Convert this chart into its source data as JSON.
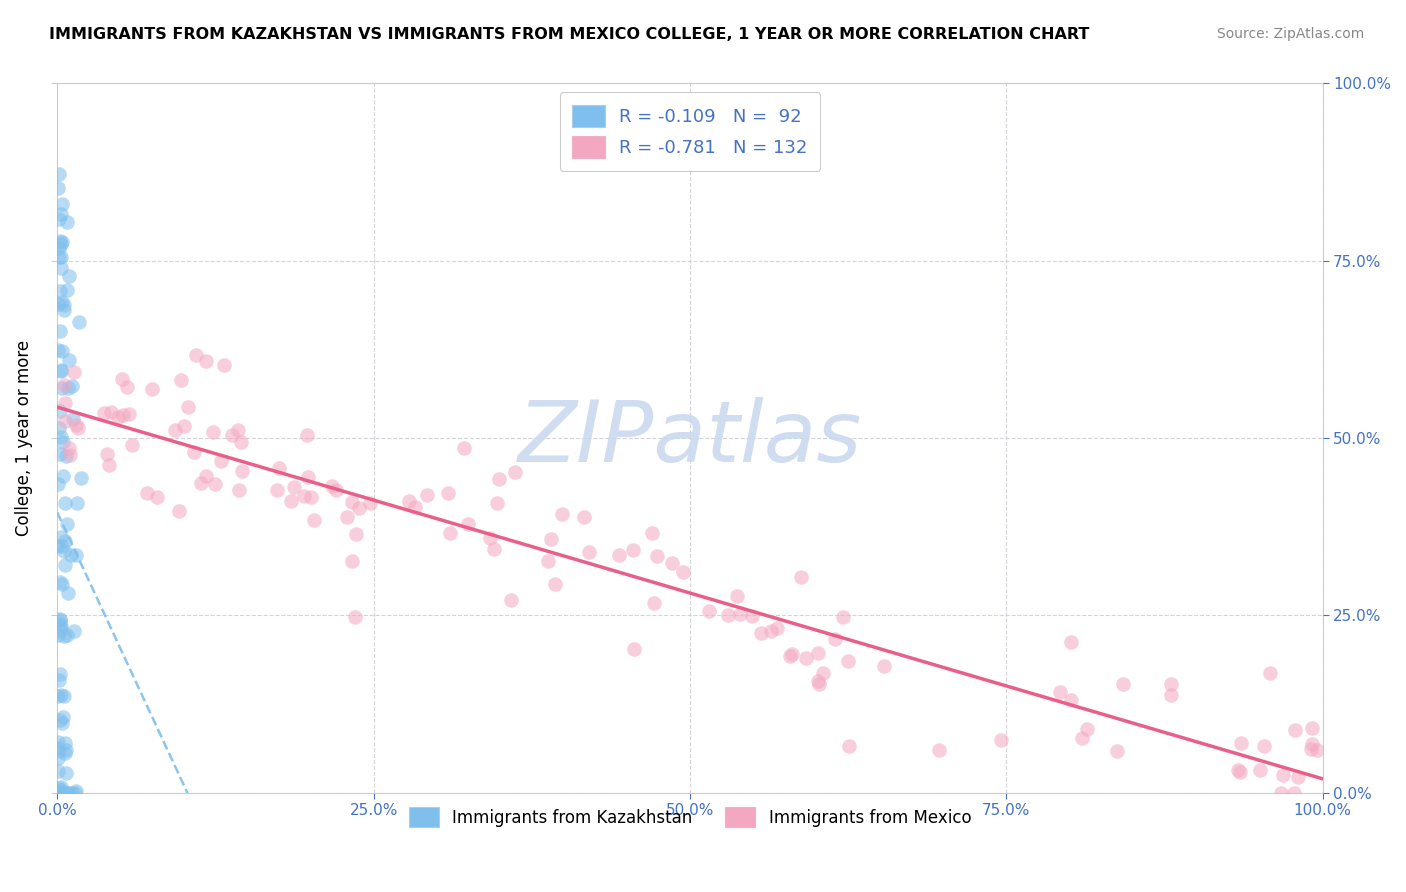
{
  "title": "IMMIGRANTS FROM KAZAKHSTAN VS IMMIGRANTS FROM MEXICO COLLEGE, 1 YEAR OR MORE CORRELATION CHART",
  "source": "Source: ZipAtlas.com",
  "ylabel": "College, 1 year or more",
  "legend_labels": [
    "Immigrants from Kazakhstan",
    "Immigrants from Mexico"
  ],
  "legend_R": [
    -0.109,
    -0.781
  ],
  "legend_N": [
    92,
    132
  ],
  "dot_color_kaz": "#7fbfed",
  "dot_color_mex": "#f4a7c0",
  "line_color_kaz": "#7fbfed",
  "line_color_mex": "#e8608a",
  "xlim": [
    0.0,
    1.0
  ],
  "ylim": [
    0.0,
    1.0
  ],
  "xticks": [
    0.0,
    0.25,
    0.5,
    0.75,
    1.0
  ],
  "yticks": [
    0.0,
    0.25,
    0.5,
    0.75,
    1.0
  ],
  "tick_labels": [
    "0.0%",
    "25.0%",
    "50.0%",
    "75.0%",
    "100.0%"
  ],
  "tick_color": "#4472c4",
  "watermark_text": "ZIPatlas",
  "watermark_color": "#c8d8ee",
  "background_color": "#ffffff",
  "grid_color": "#c8c8d0",
  "title_fontsize": 11.5,
  "source_fontsize": 10,
  "ylabel_fontsize": 12,
  "tick_fontsize": 11,
  "legend_fontsize": 13,
  "dot_size": 110,
  "dot_alpha": 0.55
}
